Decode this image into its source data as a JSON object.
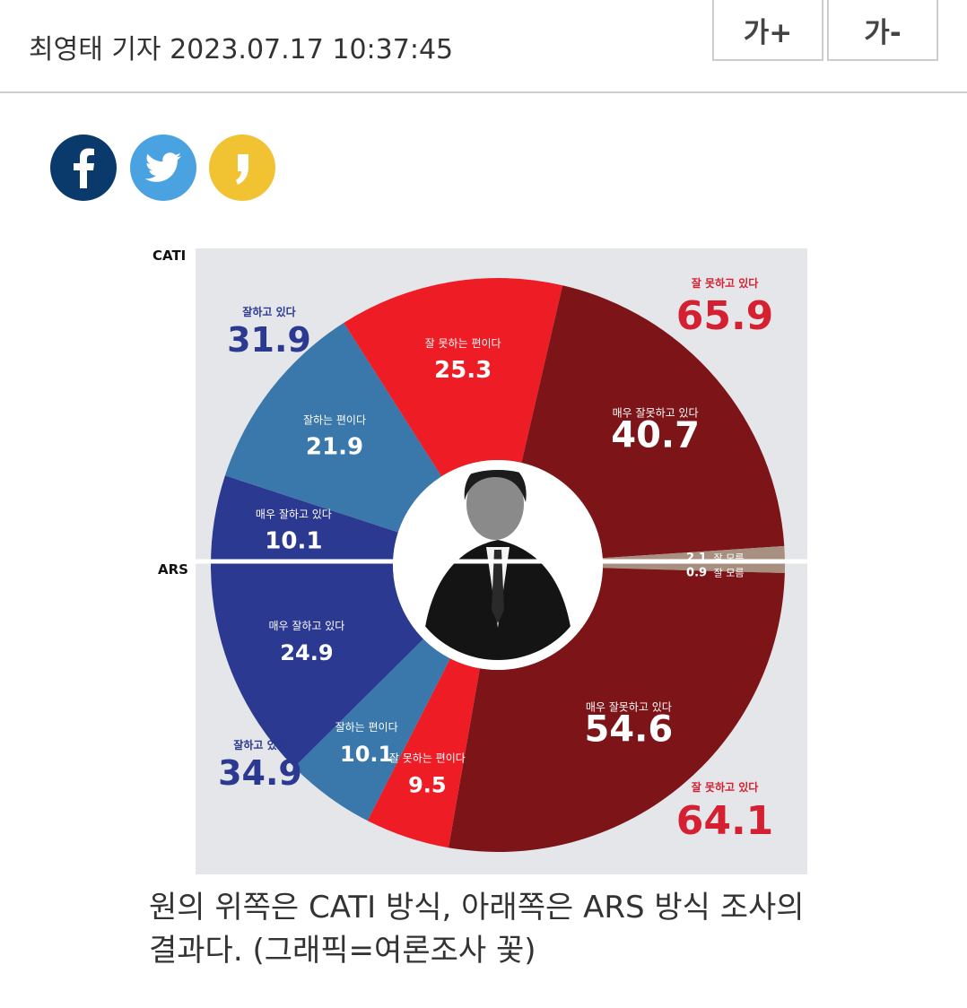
{
  "header": {
    "byline": "최영태 기자 2023.07.17 10:37:45",
    "font_increase": "가+",
    "font_decrease": "가-"
  },
  "share": [
    {
      "name": "facebook",
      "icon": "facebook-icon",
      "color": "#0a3a6b"
    },
    {
      "name": "twitter",
      "icon": "twitter-icon",
      "color": "#4aa3e0"
    },
    {
      "name": "kakao",
      "icon": "kakao-story-icon",
      "color": "#f1c232"
    }
  ],
  "chart_data": {
    "type": "pie",
    "sections": [
      {
        "name": "CATI",
        "approve_total": {
          "label": "잘하고 있다",
          "value": "31.9"
        },
        "disapprove_total": {
          "label": "잘 못하고 있다",
          "value": "65.9"
        },
        "slices": [
          {
            "label": "매우 잘하고 있다",
            "value": "10.1",
            "color": "#2b3990"
          },
          {
            "label": "잘하는 편이다",
            "value": "21.9",
            "color": "#3a78ab"
          },
          {
            "label": "잘 못하는 편이다",
            "value": "25.3",
            "color": "#ee1c25"
          },
          {
            "label": "매우 잘못하고 있다",
            "value": "40.7",
            "color": "#7d1417"
          },
          {
            "label": "잘 모름",
            "value": "2.1",
            "color": "#a89080"
          }
        ]
      },
      {
        "name": "ARS",
        "approve_total": {
          "label": "잘하고 있다",
          "value": "34.9"
        },
        "disapprove_total": {
          "label": "잘 못하고 있다",
          "value": "64.1"
        },
        "slices": [
          {
            "label": "잘 모름",
            "value": "0.9",
            "color": "#a89080"
          },
          {
            "label": "매우 잘못하고 있다",
            "value": "54.6",
            "color": "#7d1417"
          },
          {
            "label": "잘 못하는 편이다",
            "value": "9.5",
            "color": "#ee1c25"
          },
          {
            "label": "잘하는 편이다",
            "value": "10.1",
            "color": "#3a78ab"
          },
          {
            "label": "매우 잘하고 있다",
            "value": "24.9",
            "color": "#2b3990"
          }
        ]
      }
    ]
  },
  "caption": "원의 위쪽은 CATI 방식, 아래쪽은 ARS 방식 조사의 결과다. (그래픽=여론조사 꽃)"
}
